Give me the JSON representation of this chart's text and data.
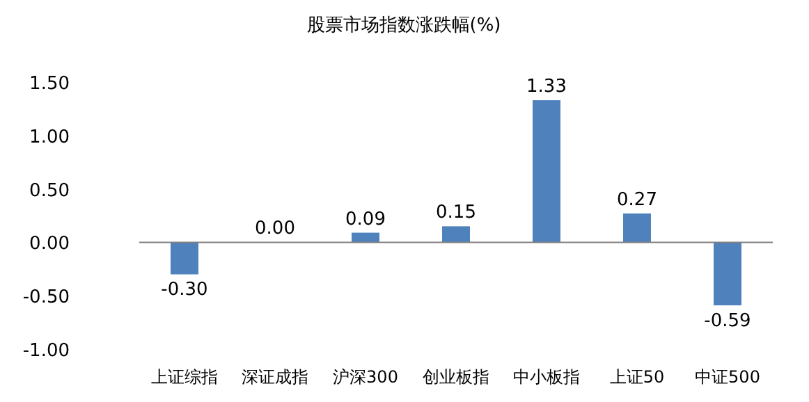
{
  "chart_data": {
    "type": "bar",
    "title": "股票市场指数涨跌幅(%)",
    "categories": [
      "上证综指",
      "深证成指",
      "沪深300",
      "创业板指",
      "中小板指",
      "上证50",
      "中证500"
    ],
    "values": [
      -0.3,
      0.0,
      0.09,
      0.15,
      1.33,
      0.27,
      -0.59
    ],
    "value_labels": [
      "-0.30",
      "0.00",
      "0.09",
      "0.15",
      "1.33",
      "0.27",
      "-0.59"
    ],
    "color": "#4f81bd",
    "ylim": [
      -1.0,
      1.5
    ],
    "yticks": [
      {
        "value": -1.0,
        "label": "-1.00"
      },
      {
        "value": -0.5,
        "label": "-0.50"
      },
      {
        "value": 0,
        "label": "0.00"
      },
      {
        "value": 0.5,
        "label": "0.50"
      },
      {
        "value": 1.0,
        "label": "1.00"
      },
      {
        "value": 1.5,
        "label": "1.50"
      }
    ],
    "data_labels": true
  }
}
